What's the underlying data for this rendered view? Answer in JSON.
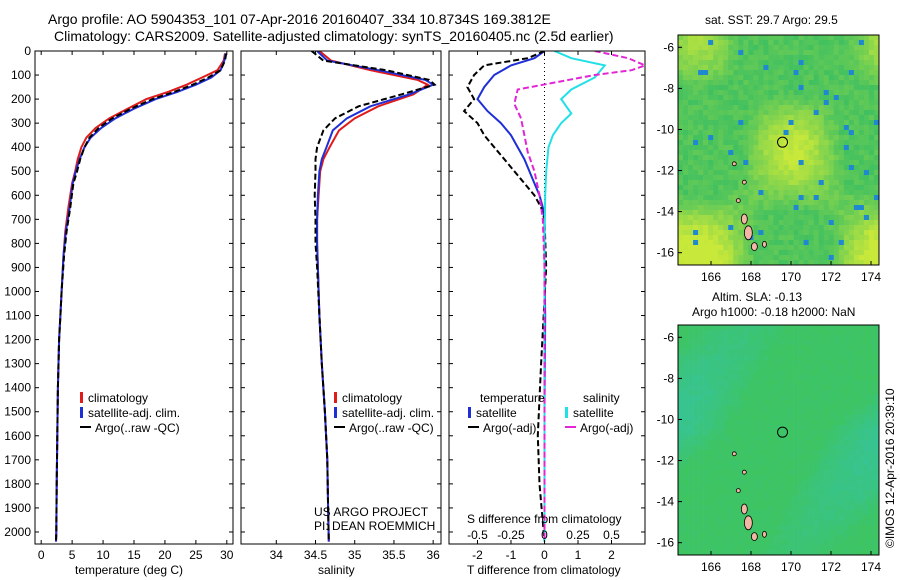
{
  "header": {
    "line1": "Argo profile: AO 5904353_101 07-Apr-2016 20160407_334 10.8734S 169.3812E",
    "line2": "Climatology: CARS2009. Satellite-adjusted climatology: synTS_20160405.nc (2.5d earlier)"
  },
  "depth_ticks": [
    0,
    100,
    200,
    300,
    400,
    500,
    600,
    700,
    800,
    900,
    1000,
    1100,
    1200,
    1300,
    1400,
    1500,
    1600,
    1700,
    1800,
    1900,
    2000
  ],
  "chart_data": [
    {
      "type": "line",
      "xlabel": "temperature (deg C)",
      "xticks": [
        0,
        5,
        10,
        15,
        20,
        25,
        30
      ],
      "xlim": [
        -1,
        31
      ],
      "ylim": [
        0,
        2050
      ],
      "series": [
        {
          "name": "climatology",
          "color": "#e01b1b",
          "dashed": false,
          "x": [
            29.7,
            29.5,
            28.5,
            26,
            23.5,
            20.5,
            17,
            14,
            11,
            8.8,
            7.3,
            6.5,
            5.9,
            5.5,
            5.0,
            4.4,
            3.9,
            3.6,
            3.3,
            3.1,
            2.9,
            2.7,
            2.6,
            2.5,
            2.45,
            2.4
          ],
          "y": [
            10,
            40,
            80,
            110,
            140,
            170,
            200,
            240,
            280,
            320,
            360,
            400,
            450,
            500,
            550,
            650,
            750,
            850,
            1000,
            1100,
            1200,
            1400,
            1600,
            1800,
            2000,
            2040
          ]
        },
        {
          "name": "satellite-adj. clim.",
          "color": "#1f2fd6",
          "dashed": false,
          "x": [
            29.8,
            29.6,
            29,
            27.5,
            25,
            22,
            18.5,
            15,
            12,
            9.7,
            8,
            7,
            6.2,
            5.6,
            5.1,
            4.6,
            4.0,
            3.6,
            3.3,
            3.1,
            2.9,
            2.7,
            2.6,
            2.5,
            2.45,
            2.4
          ],
          "y": [
            10,
            40,
            80,
            110,
            140,
            170,
            200,
            240,
            280,
            320,
            360,
            400,
            450,
            500,
            550,
            650,
            750,
            850,
            1000,
            1100,
            1200,
            1400,
            1600,
            1800,
            2000,
            2040
          ]
        },
        {
          "name": "Argo(..raw -QC)",
          "color": "#000000",
          "dashed": true,
          "x": [
            29.9,
            29.7,
            29,
            27,
            24.5,
            21.5,
            18,
            14.5,
            11.5,
            9.3,
            7.8,
            7,
            6.3,
            5.8,
            5.2,
            4.7,
            4.1,
            3.7,
            3.3,
            3.1,
            2.9,
            2.7,
            2.6,
            2.5,
            2.45,
            2.4
          ],
          "y": [
            10,
            40,
            80,
            110,
            140,
            170,
            200,
            240,
            280,
            320,
            360,
            400,
            450,
            500,
            550,
            650,
            750,
            850,
            1000,
            1100,
            1200,
            1400,
            1600,
            1800,
            2000,
            2040
          ]
        }
      ],
      "legend": {
        "position": "bottom",
        "items": [
          "climatology",
          "satellite-adj. clim.",
          "Argo(..raw -QC)"
        ]
      }
    },
    {
      "type": "line",
      "xlabel": "salinity",
      "xticks": [
        34,
        34.5,
        35,
        35.5,
        36
      ],
      "xlim": [
        33.55,
        36.1
      ],
      "ylim": [
        0,
        2050
      ],
      "series": [
        {
          "name": "climatology",
          "color": "#e01b1b",
          "dashed": false,
          "x": [
            34.55,
            34.7,
            35.2,
            35.8,
            35.93,
            35.75,
            35.3,
            35.0,
            34.8,
            34.68,
            34.6,
            34.56,
            34.54,
            34.52,
            34.52,
            34.53,
            34.55,
            34.58,
            34.62,
            34.65,
            34.66,
            34.67
          ],
          "y": [
            0,
            40,
            80,
            120,
            140,
            180,
            230,
            280,
            330,
            400,
            450,
            500,
            600,
            700,
            800,
            900,
            1100,
            1300,
            1500,
            1700,
            1900,
            2040
          ]
        },
        {
          "name": "satellite-adj. clim.",
          "color": "#1f2fd6",
          "dashed": false,
          "x": [
            34.52,
            34.65,
            35.3,
            35.9,
            36.0,
            35.7,
            35.2,
            34.9,
            34.72,
            34.64,
            34.58,
            34.55,
            34.53,
            34.52,
            34.52,
            34.53,
            34.55,
            34.58,
            34.62,
            34.65,
            34.66,
            34.67
          ],
          "y": [
            0,
            40,
            80,
            120,
            140,
            180,
            230,
            280,
            330,
            400,
            450,
            500,
            600,
            700,
            800,
            900,
            1100,
            1300,
            1500,
            1700,
            1900,
            2040
          ]
        },
        {
          "name": "Argo(..raw -QC)",
          "color": "#000000",
          "dashed": true,
          "x": [
            34.45,
            34.6,
            35.4,
            35.95,
            36.02,
            35.6,
            35.05,
            34.75,
            34.6,
            34.52,
            34.5,
            34.5,
            34.49,
            34.5,
            34.5,
            34.52,
            34.55,
            34.58,
            34.62,
            34.65,
            34.66,
            34.67
          ],
          "y": [
            0,
            40,
            80,
            120,
            140,
            180,
            230,
            280,
            330,
            400,
            450,
            500,
            600,
            700,
            800,
            900,
            1100,
            1300,
            1500,
            1700,
            1900,
            2040
          ]
        }
      ],
      "legend": {
        "position": "bottom",
        "items": [
          "climatology",
          "satellite-adj. clim.",
          "Argo(..raw -QC)"
        ]
      },
      "annotation": [
        "US ARGO PROJECT",
        "PI: DEAN ROEMMICH"
      ]
    },
    {
      "type": "line",
      "xlabel": "T difference from climatology",
      "xlabel_top": "S difference from climatology",
      "xticks": [
        -2,
        -1,
        0,
        1,
        2
      ],
      "xticks_top": [
        "-0.5",
        "-0.25",
        "0",
        "0.25",
        "0.5"
      ],
      "xlim": [
        -2.85,
        3.0
      ],
      "ylim": [
        0,
        2050
      ],
      "series": [
        {
          "name": "temperature satellite",
          "color": "#1f2fd6",
          "dashed": false,
          "x": [
            0,
            -0.3,
            -1.0,
            -1.5,
            -1.8,
            -2.0,
            -1.7,
            -1.3,
            -1.0,
            -0.8,
            -0.6,
            -0.45,
            -0.3,
            -0.15,
            -0.05,
            0,
            0,
            0.02,
            0,
            0
          ],
          "y": [
            0,
            30,
            60,
            100,
            150,
            200,
            250,
            300,
            350,
            400,
            450,
            500,
            550,
            600,
            650,
            700,
            900,
            1100,
            1500,
            2040
          ]
        },
        {
          "name": "temperature Argo(-adj)",
          "color": "#000000",
          "dashed": true,
          "x": [
            0,
            -0.5,
            -1.8,
            -2.1,
            -2.3,
            -2.1,
            -2.4,
            -2.0,
            -1.8,
            -1.5,
            -1.2,
            -0.9,
            -0.6,
            -0.3,
            -0.1,
            0,
            0.05,
            -0.1,
            -0.2,
            -0.15,
            0
          ],
          "y": [
            0,
            30,
            60,
            100,
            150,
            200,
            250,
            300,
            350,
            400,
            450,
            500,
            550,
            600,
            650,
            700,
            900,
            1300,
            1600,
            1800,
            2040
          ]
        },
        {
          "name": "salinity satellite",
          "color": "#22e0e6",
          "dashed": false,
          "x": [
            0.3,
            0.8,
            1.8,
            1.5,
            0.8,
            0.5,
            0.8,
            0.5,
            0.25,
            0.12,
            0.05,
            0.02,
            0,
            0,
            0
          ],
          "y": [
            0,
            30,
            60,
            110,
            160,
            200,
            260,
            300,
            350,
            400,
            500,
            600,
            800,
            1200,
            2040
          ]
        },
        {
          "name": "salinity Argo(-adj)",
          "color": "#e226d6",
          "dashed": true,
          "x": [
            1.5,
            2.5,
            3.0,
            2.6,
            1.5,
            -0.8,
            -0.9,
            -0.7,
            -0.6,
            -0.5,
            -0.3,
            -0.15,
            -0.05,
            0,
            0
          ],
          "y": [
            0,
            30,
            60,
            80,
            100,
            160,
            220,
            280,
            350,
            420,
            500,
            600,
            700,
            900,
            2040
          ]
        }
      ],
      "legend": {
        "position": "bottom",
        "items": [
          "temperature",
          "satellite",
          "Argo(-adj)",
          "salinity",
          "satellite",
          "Argo(-adj)"
        ]
      }
    }
  ],
  "maps": {
    "sst": {
      "title": "sat. SST: 29.7  Argo: 29.5",
      "xticks": [
        "166",
        "168",
        "170",
        "172",
        "174"
      ],
      "yticks": [
        "-6",
        "-8",
        "-10",
        "-12",
        "-14",
        "-16"
      ]
    },
    "sla": {
      "title1": "Altim. SLA: -0.13",
      "title2": "Argo h1000: -0.18 h2000: NaN",
      "xticks": [
        "166",
        "168",
        "170",
        "172",
        "174"
      ],
      "yticks": [
        "-6",
        "-8",
        "-10",
        "-12",
        "-14",
        "-16"
      ]
    },
    "colors": {
      "sst_base": "#41c060",
      "sst_warm": "#c8e83a",
      "sst_cool": "#1e88d0",
      "sla_base": "#3ec460",
      "sla_cool": "#34c4a8",
      "land": "#f1b7a4",
      "profile_marker": "#000000"
    }
  },
  "credit": "©IMOS 12-Apr-2016 20:39:10"
}
